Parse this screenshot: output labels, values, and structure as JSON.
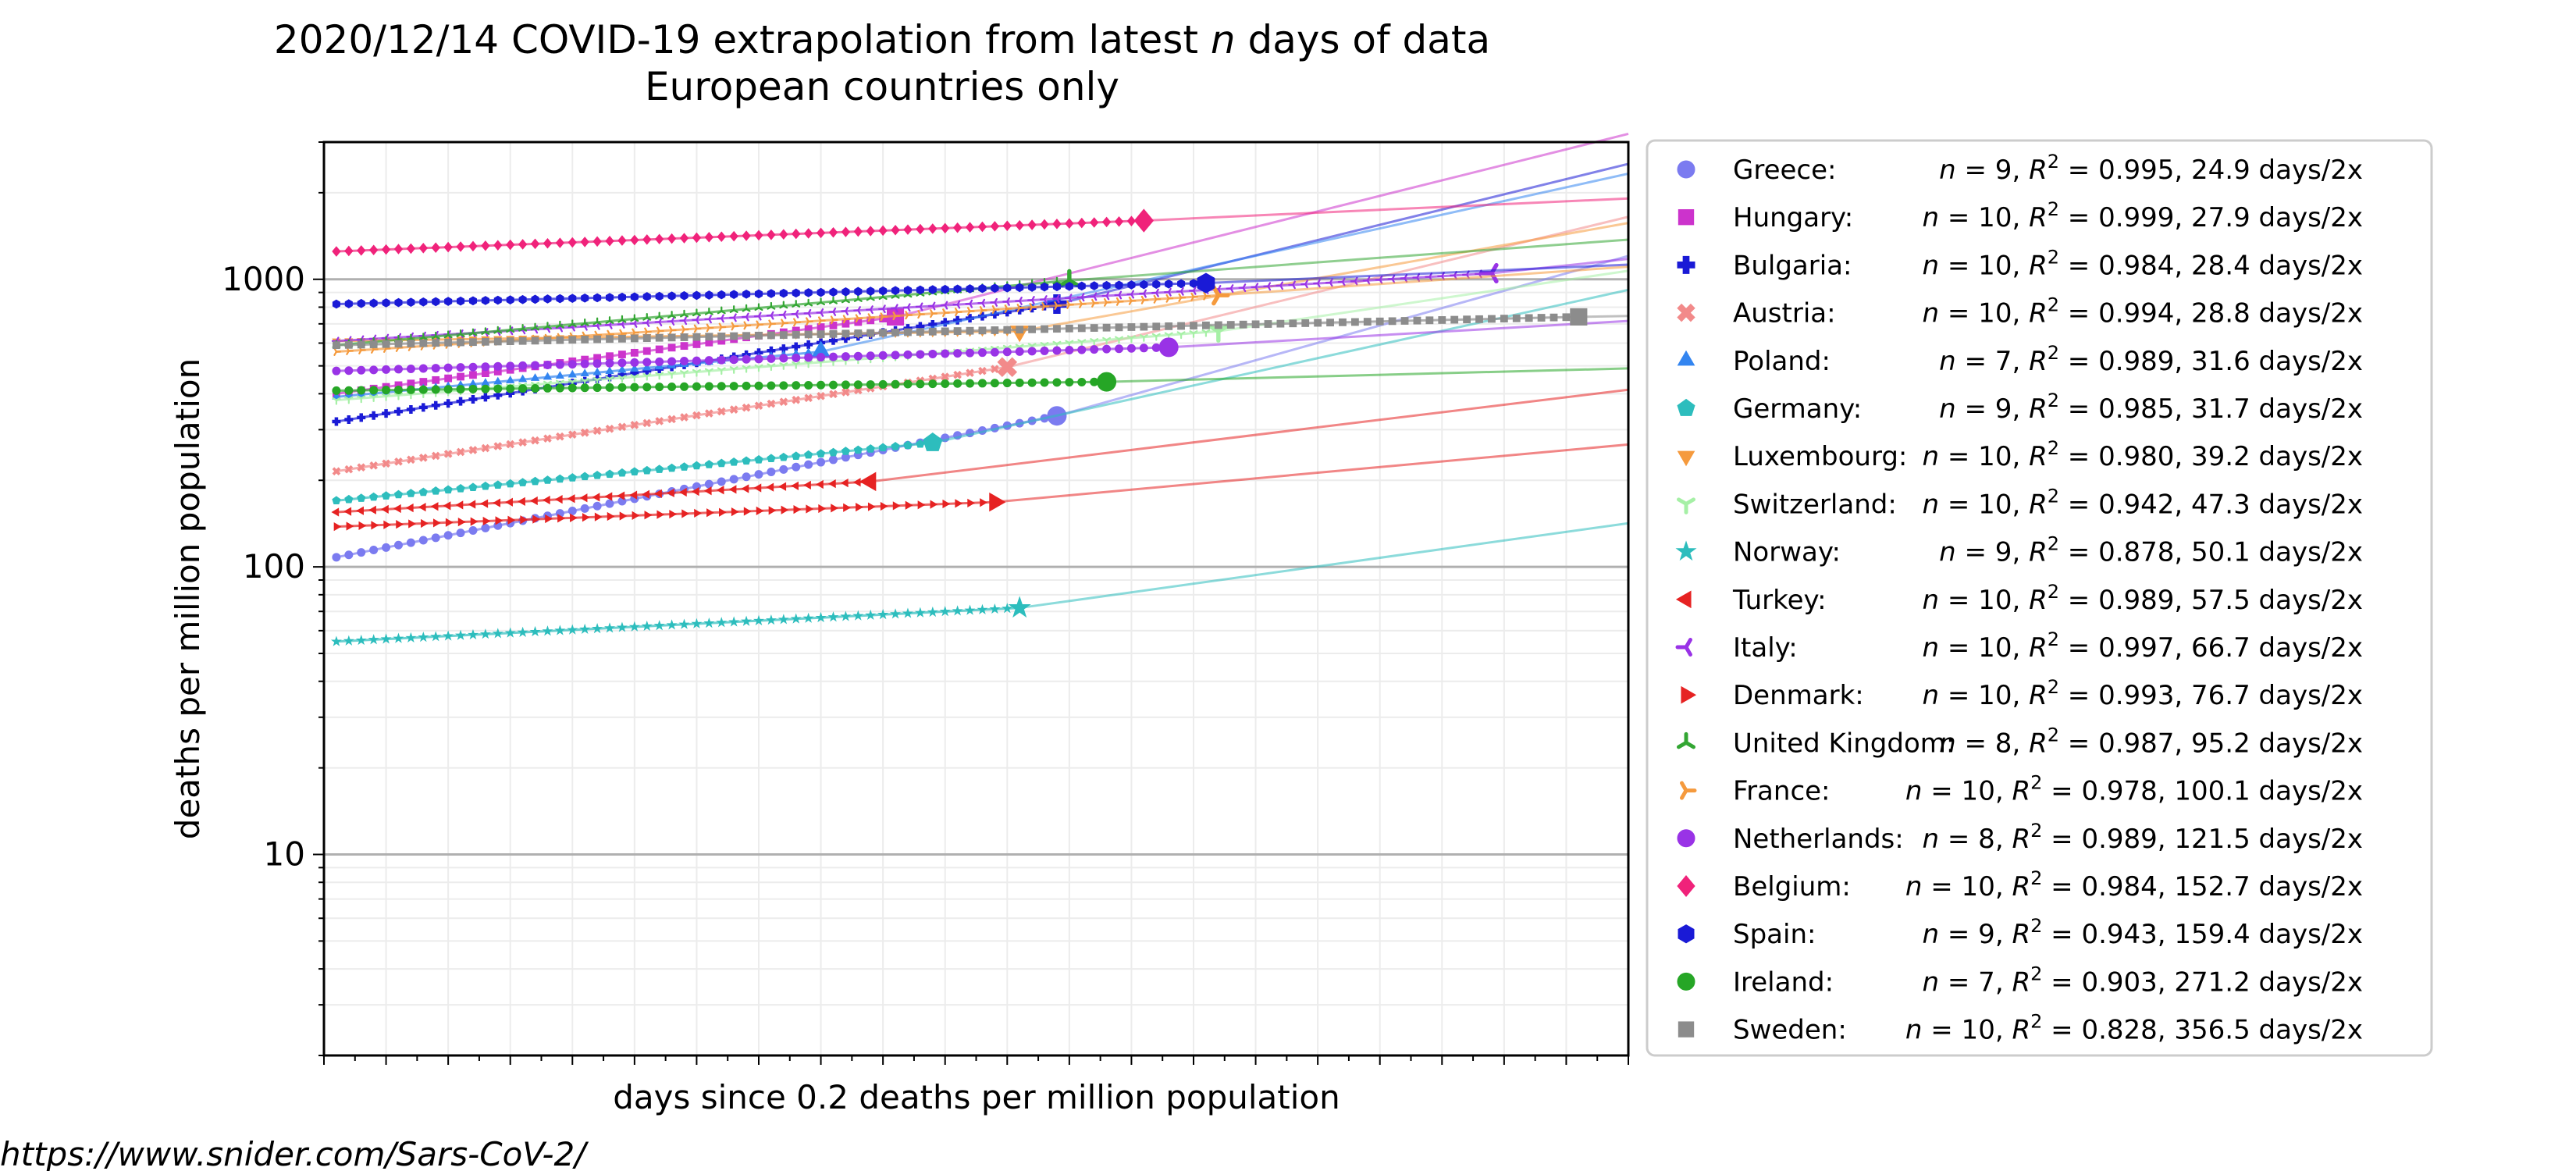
{
  "chart_data": {
    "type": "line",
    "title_line1_pre": "2020/12/14 COVID-19 extrapolation from latest ",
    "title_line1_var": "n",
    "title_line1_post": " days of data",
    "title_line2": "European countries only",
    "xlabel": "days since 0.2 deaths per million population",
    "ylabel": "deaths per million population",
    "yscale": "log",
    "ylim": [
      2,
      3000
    ],
    "xlim": [
      0,
      105
    ],
    "yticks": [
      10,
      100,
      1000
    ],
    "ytick_labels": [
      "10",
      "100",
      "1000"
    ],
    "grid": true,
    "legend_position": "right",
    "footer": "https://www.snider.com/Sars-CoV-2/",
    "series": [
      {
        "name": "Greece",
        "color": "#7b7bf0",
        "marker": "circle",
        "n": "9",
        "r2": "0.995",
        "doubling": "24.9 days/2x",
        "y_start": 108,
        "y_end": 335,
        "x_end": 59,
        "days": 58
      },
      {
        "name": "Hungary",
        "color": "#cc33cc",
        "marker": "square",
        "n": "10",
        "r2": "0.999",
        "doubling": "27.9 days/2x",
        "y_start": 400,
        "y_end": 740,
        "x_end": 46,
        "days": 45
      },
      {
        "name": "Bulgaria",
        "color": "#1a1ad6",
        "marker": "plus",
        "n": "10",
        "r2": "0.984",
        "doubling": "28.4 days/2x",
        "y_start": 320,
        "y_end": 820,
        "x_end": 59,
        "days": 58
      },
      {
        "name": "Austria",
        "color": "#f28a8a",
        "marker": "x",
        "n": "10",
        "r2": "0.994",
        "doubling": "28.8 days/2x",
        "y_start": 215,
        "y_end": 495,
        "x_end": 55,
        "days": 54
      },
      {
        "name": "Poland",
        "color": "#3385f0",
        "marker": "triangle-up",
        "n": "7",
        "r2": "0.989",
        "doubling": "31.6 days/2x",
        "y_start": 390,
        "y_end": 560,
        "x_end": 40,
        "days": 39
      },
      {
        "name": "Germany",
        "color": "#2dbdbd",
        "marker": "pentagon",
        "n": "9",
        "r2": "0.985",
        "doubling": "31.7 days/2x",
        "y_start": 170,
        "y_end": 270,
        "x_end": 49,
        "days": 48
      },
      {
        "name": "Luxembourg",
        "color": "#f59a3d",
        "marker": "triangle-down",
        "n": "10",
        "r2": "0.980",
        "doubling": "39.2 days/2x",
        "y_start": 610,
        "y_end": 660,
        "x_end": 56,
        "days": 55
      },
      {
        "name": "Switzerland",
        "color": "#a6f0a6",
        "marker": "tri-down",
        "n": "10",
        "r2": "0.942",
        "doubling": "47.3 days/2x",
        "y_start": 380,
        "y_end": 660,
        "x_end": 72,
        "days": 71
      },
      {
        "name": "Norway",
        "color": "#2dbdbd",
        "marker": "star",
        "n": "9",
        "r2": "0.878",
        "doubling": "50.1 days/2x",
        "y_start": 55,
        "y_end": 72,
        "x_end": 56,
        "days": 55
      },
      {
        "name": "Turkey",
        "color": "#e62222",
        "marker": "triangle-left",
        "n": "10",
        "r2": "0.989",
        "doubling": "57.5 days/2x",
        "y_start": 155,
        "y_end": 198,
        "x_end": 44,
        "days": 43
      },
      {
        "name": "Italy",
        "color": "#9933e6",
        "marker": "tri-left",
        "n": "10",
        "r2": "0.997",
        "doubling": "66.7 days/2x",
        "y_start": 610,
        "y_end": 1050,
        "x_end": 94,
        "days": 93
      },
      {
        "name": "Denmark",
        "color": "#e62222",
        "marker": "triangle-right",
        "n": "10",
        "r2": "0.993",
        "doubling": "76.7 days/2x",
        "y_start": 138,
        "y_end": 168,
        "x_end": 54,
        "days": 53
      },
      {
        "name": "United Kingdom",
        "color": "#33a633",
        "marker": "tri-up",
        "n": "8",
        "r2": "0.987",
        "doubling": "95.2 days/2x",
        "y_start": 590,
        "y_end": 990,
        "x_end": 60,
        "days": 59
      },
      {
        "name": "France",
        "color": "#f59a3d",
        "marker": "tri-right",
        "n": "10",
        "r2": "0.978",
        "doubling": "100.1 days/2x",
        "y_start": 560,
        "y_end": 880,
        "x_end": 72,
        "days": 71
      },
      {
        "name": "Netherlands",
        "color": "#9933e6",
        "marker": "circle",
        "n": "8",
        "r2": "0.989",
        "doubling": "121.5 days/2x",
        "y_start": 480,
        "y_end": 580,
        "x_end": 68,
        "days": 67
      },
      {
        "name": "Belgium",
        "color": "#f0227a",
        "marker": "diamond",
        "n": "10",
        "r2": "0.984",
        "doubling": "152.7 days/2x",
        "y_start": 1250,
        "y_end": 1600,
        "x_end": 66,
        "days": 65
      },
      {
        "name": "Spain",
        "color": "#1a1ad6",
        "marker": "hexagon",
        "n": "9",
        "r2": "0.943",
        "doubling": "159.4 days/2x",
        "y_start": 820,
        "y_end": 970,
        "x_end": 71,
        "days": 70
      },
      {
        "name": "Ireland",
        "color": "#26a626",
        "marker": "circle",
        "n": "7",
        "r2": "0.903",
        "doubling": "271.2 days/2x",
        "y_start": 410,
        "y_end": 440,
        "x_end": 63,
        "days": 62
      },
      {
        "name": "Sweden",
        "color": "#8c8c8c",
        "marker": "square",
        "n": "10",
        "r2": "0.828",
        "doubling": "356.5 days/2x",
        "y_start": 590,
        "y_end": 740,
        "x_end": 101,
        "days": 100
      }
    ]
  }
}
